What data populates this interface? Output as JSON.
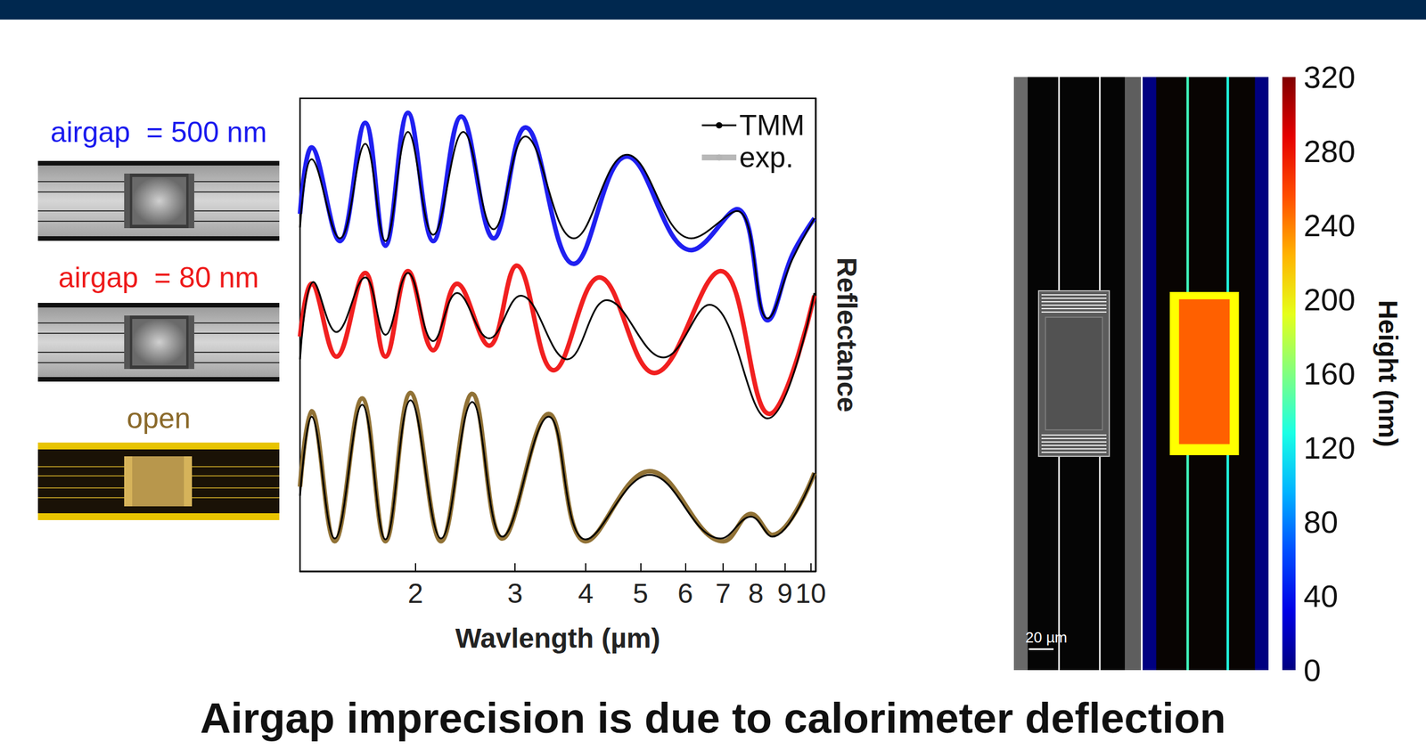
{
  "panels": [
    {
      "label": "airgap  = 500 nm",
      "color": "#1a1aee"
    },
    {
      "label": "airgap  = 80 nm",
      "color": "#ee1a1a"
    },
    {
      "label": "open",
      "color": "#8b6a2b"
    }
  ],
  "chart_data": {
    "type": "line",
    "x_label": "Wavlength (µm)",
    "y_label": "Reflectance",
    "log": "x",
    "grid": false,
    "legend": "upper right",
    "tick_labels": "x",
    "xlim": [
      1.25,
      10.2
    ],
    "xticks": [
      2,
      3,
      4,
      5,
      6,
      7,
      8,
      9,
      10
    ],
    "ylim": [
      0,
      5.2
    ],
    "series": [
      {
        "name": "TMM",
        "color": "#000000",
        "line_style": "solid",
        "x": [
          1.25,
          1.31,
          1.47,
          1.63,
          1.77,
          1.94,
          2.15,
          2.43,
          2.75,
          3.13,
          3.81,
          4.73,
          6.15,
          7.41,
          8.39,
          9.28,
          10.15
        ],
        "values": [
          3.78,
          4.53,
          3.66,
          4.7,
          3.63,
          4.83,
          3.7,
          4.83,
          3.76,
          4.78,
          3.66,
          4.58,
          3.66,
          3.96,
          2.78,
          3.43,
          3.88
        ]
      },
      {
        "name": "exp.",
        "color": "#1414f0",
        "line_style": "thick",
        "x": [
          1.25,
          1.31,
          1.47,
          1.63,
          1.77,
          1.94,
          2.15,
          2.41,
          2.75,
          3.13,
          3.81,
          4.73,
          6.15,
          7.41,
          8.39,
          9.28,
          10.15
        ],
        "values": [
          3.93,
          4.66,
          3.63,
          4.93,
          3.58,
          5.04,
          3.63,
          5.0,
          3.66,
          4.88,
          3.38,
          4.56,
          3.53,
          3.98,
          2.76,
          3.48,
          3.88
        ]
      },
      {
        "name": "TMM",
        "color": "#000000",
        "line_style": "solid",
        "x": [
          1.25,
          1.32,
          1.45,
          1.63,
          1.77,
          1.94,
          2.15,
          2.37,
          2.7,
          3.07,
          3.71,
          4.36,
          5.49,
          6.62,
          8.39,
          10.15
        ],
        "values": [
          2.33,
          3.18,
          2.63,
          3.23,
          2.6,
          3.28,
          2.53,
          3.06,
          2.56,
          3.03,
          2.33,
          2.98,
          2.35,
          2.93,
          1.68,
          3.06
        ]
      },
      {
        "name": "exp.",
        "color": "#f01414",
        "line_style": "thick",
        "x": [
          1.25,
          1.31,
          1.45,
          1.63,
          1.77,
          1.94,
          2.15,
          2.37,
          2.7,
          3.02,
          3.51,
          4.23,
          5.29,
          6.93,
          8.45,
          10.15
        ],
        "values": [
          2.58,
          3.16,
          2.36,
          3.28,
          2.36,
          3.3,
          2.43,
          3.16,
          2.48,
          3.36,
          2.21,
          3.23,
          2.18,
          3.3,
          1.73,
          3.03
        ]
      },
      {
        "name": "TMM",
        "color": "#000000",
        "line_style": "solid",
        "x": [
          1.25,
          1.31,
          1.44,
          1.61,
          1.77,
          1.96,
          2.22,
          2.52,
          2.85,
          3.44,
          4.0,
          5.19,
          6.93,
          7.84,
          8.55,
          10.15
        ],
        "values": [
          0.83,
          1.7,
          0.36,
          1.83,
          0.35,
          1.88,
          0.36,
          1.86,
          0.38,
          1.7,
          0.35,
          1.06,
          0.36,
          0.6,
          0.38,
          1.08
        ]
      },
      {
        "name": "exp.",
        "color": "#8b6a2b",
        "line_style": "thick",
        "x": [
          1.25,
          1.31,
          1.44,
          1.61,
          1.77,
          1.96,
          2.22,
          2.52,
          2.85,
          3.44,
          4.0,
          5.19,
          7.01,
          7.84,
          8.55,
          10.15
        ],
        "values": [
          0.93,
          1.76,
          0.33,
          1.9,
          0.33,
          1.96,
          0.33,
          1.95,
          0.36,
          1.73,
          0.33,
          1.1,
          0.33,
          0.63,
          0.4,
          1.08
        ]
      }
    ]
  },
  "height_map": {
    "xlim": [
      0,
      102
    ],
    "ylim": [
      0,
      483
    ],
    "regions": [
      {
        "x": [
          0,
          11
        ],
        "y": [
          0,
          483
        ],
        "height": 0
      },
      {
        "x": [
          91,
          102
        ],
        "y": [
          0,
          483
        ],
        "height": 0
      },
      {
        "x": [
          35.5,
          37.5
        ],
        "y": [
          0,
          483
        ],
        "height": 140
      },
      {
        "x": [
          68,
          70
        ],
        "y": [
          0,
          483
        ],
        "height": 130
      },
      {
        "x": [
          22,
          78
        ],
        "y": [
          175,
          308
        ],
        "height": 200
      },
      {
        "x": [
          29.5,
          70.5
        ],
        "y": [
          181,
          299
        ],
        "height": 250
      }
    ],
    "colorbar": {
      "range": [
        0,
        320
      ],
      "ticks": [
        0,
        40,
        80,
        120,
        160,
        200,
        240,
        280,
        320
      ],
      "label": "Height (nm)"
    },
    "scale_bar": {
      "label": "20 µm",
      "length": 20
    }
  },
  "caption": "Airgap imprecision is due to calorimeter deflection"
}
